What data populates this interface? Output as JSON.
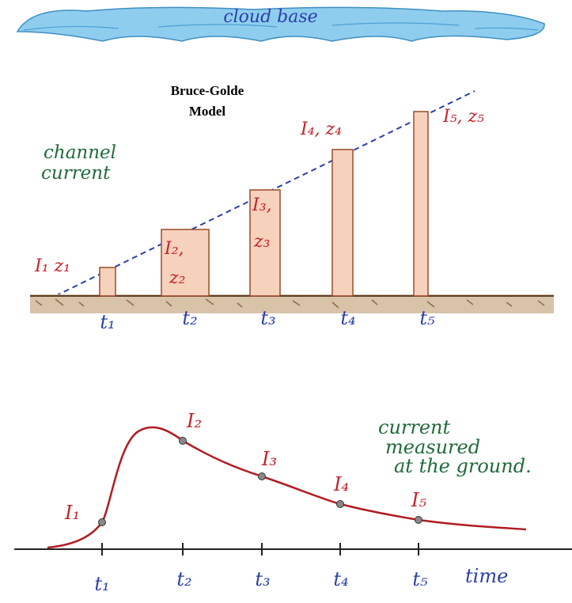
{
  "top_diagram": {
    "cloud_label": "cloud base",
    "title_line1": "Bruce-Golde",
    "title_line2": "Model",
    "channel_label_line1": "channel",
    "channel_label_line2": "current",
    "bar_labels": [
      {
        "line1": "I₁ z₁",
        "line2": ""
      },
      {
        "line1": "I₂,",
        "line2": "z₂"
      },
      {
        "line1": "I₃,",
        "line2": "z₃"
      },
      {
        "line1": "I₄, z₄",
        "line2": ""
      },
      {
        "line1": "I₅, z₅",
        "line2": ""
      }
    ],
    "time_labels": [
      "t₁",
      "t₂",
      "t₃",
      "t₄",
      "t₅"
    ]
  },
  "bottom_diagram": {
    "caption_line1": "current",
    "caption_line2": "measured",
    "caption_line3": "at the ground.",
    "point_labels": [
      "I₁",
      "I₂",
      "I₃",
      "I₄",
      "I₅"
    ],
    "time_labels": [
      "t₁",
      "t₂",
      "t₃",
      "t₄",
      "t₅"
    ],
    "axis_label": "time"
  },
  "colors": {
    "cloud": "#7fc4ea",
    "bar_fill": "#f6d2bd",
    "bar_stroke": "#9a4a2a",
    "ground": "#8a6a4a",
    "dashed_line": "#2b3fa8",
    "curve": "#b01c22"
  }
}
